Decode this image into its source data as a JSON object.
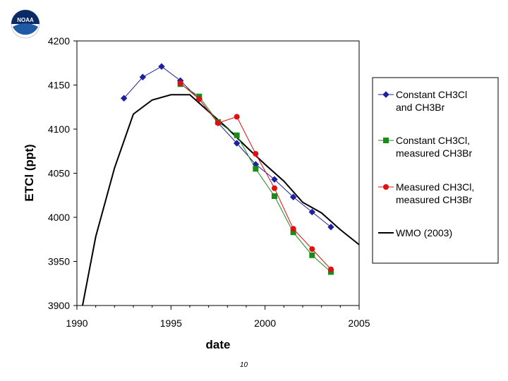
{
  "logo": {
    "text": "NOAA",
    "colors": {
      "blue": "#1f5aa6",
      "navy": "#0a2a66",
      "white": "#ffffff"
    }
  },
  "page_number": "10",
  "chart_data": {
    "type": "line",
    "xlabel": "date",
    "ylabel": "ETCl (ppt)",
    "xlim": [
      1990,
      2005
    ],
    "ylim": [
      3900,
      4200
    ],
    "xticks": [
      1990,
      1995,
      2000,
      2005
    ],
    "yticks": [
      3900,
      3950,
      4000,
      4050,
      4100,
      4150,
      4200
    ],
    "grid": false,
    "legend_position": "right",
    "series": [
      {
        "name": "Constant CH3Cl and CH3Br",
        "legend_lines": [
          "Constant CH3Cl",
          "and CH3Br"
        ],
        "color": "#1f1fa0",
        "marker": "diamond",
        "x": [
          1992.5,
          1993.5,
          1994.5,
          1995.5,
          1996.5,
          1997.5,
          1998.5,
          1999.5,
          2000.5,
          2001.5,
          2002.5,
          2003.5
        ],
        "y": [
          4135,
          4159,
          4171,
          4155,
          4134,
          4107,
          4084,
          4060,
          4043,
          4023,
          4006,
          3989
        ]
      },
      {
        "name": "Constant CH3Cl, measured CH3Br",
        "legend_lines": [
          "Constant CH3Cl,",
          "measured CH3Br"
        ],
        "color": "#1a8c1a",
        "marker": "square",
        "x": [
          1995.5,
          1996.5,
          1997.5,
          1998.5,
          1999.5,
          2000.5,
          2001.5,
          2002.5,
          2003.5
        ],
        "y": [
          4151,
          4137,
          4108,
          4093,
          4055,
          4024,
          3983,
          3957,
          3938
        ]
      },
      {
        "name": "Measured CH3Cl, measured CH3Br",
        "legend_lines": [
          "Measured CH3Cl,",
          "measured CH3Br"
        ],
        "color": "#e01010",
        "marker": "circle",
        "x": [
          1995.5,
          1996.5,
          1997.5,
          1998.5,
          1999.5,
          2000.5,
          2001.5,
          2002.5,
          2003.5
        ],
        "y": [
          4152,
          4134,
          4107,
          4114,
          4072,
          4033,
          3987,
          3964,
          3941
        ]
      },
      {
        "name": "WMO (2003)",
        "legend_lines": [
          "WMO (2003)"
        ],
        "color": "#000000",
        "marker": "none",
        "x": [
          1990.3,
          1991,
          1992,
          1993,
          1994,
          1995,
          1996,
          1997,
          1998,
          1999,
          2000,
          2001,
          2002,
          2003,
          2004,
          2005
        ],
        "y": [
          3900,
          3978,
          4056,
          4117,
          4133,
          4139,
          4139,
          4120,
          4101,
          4080,
          4060,
          4041,
          4017,
          4005,
          3986,
          3969
        ]
      }
    ]
  }
}
